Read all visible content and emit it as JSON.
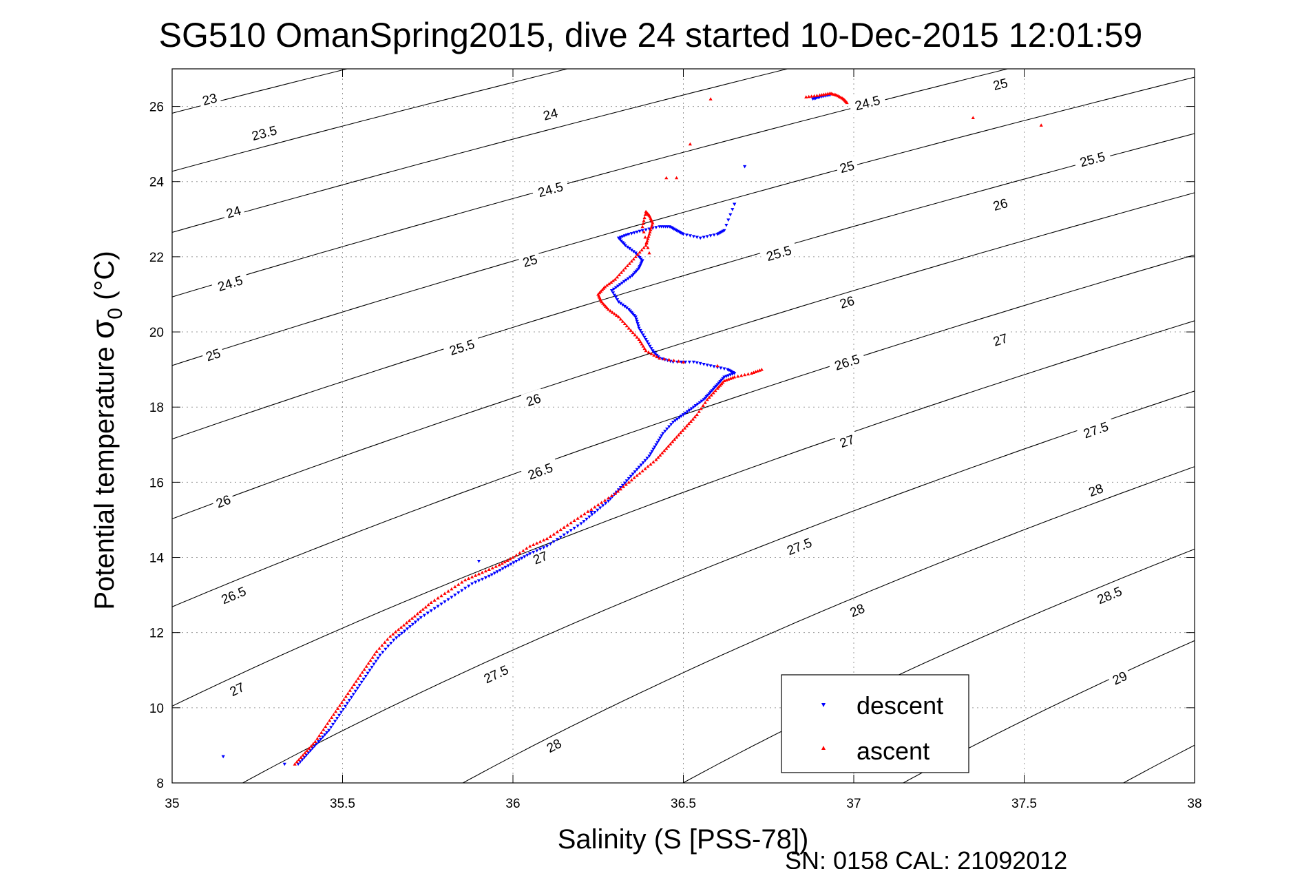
{
  "chart_data": {
    "type": "scatter",
    "title": "SG510 OmanSpring2015, dive 24 started 10-Dec-2015 12:01:59",
    "xlabel": "Salinity (S [PSS-78])",
    "ylabel_main": "Potential temperature ",
    "ylabel_sigma": "σ",
    "ylabel_sub": "0",
    "ylabel_unit": " (°C)",
    "xlim": [
      35,
      38
    ],
    "ylim": [
      8,
      27
    ],
    "x_ticks": [
      "35",
      "35.5",
      "36",
      "36.5",
      "37",
      "37.5",
      "38"
    ],
    "y_ticks": [
      "8",
      "10",
      "12",
      "14",
      "16",
      "18",
      "20",
      "22",
      "24",
      "26"
    ],
    "grid": true,
    "legend_position": "bottom-right",
    "footer": "SN: 0158  CAL: 21092012",
    "contour_labels": [
      {
        "text": "23",
        "s": 35.11,
        "t": 26.2
      },
      {
        "text": "23.5",
        "s": 35.27,
        "t": 25.3
      },
      {
        "text": "24",
        "s": 36.11,
        "t": 25.8
      },
      {
        "text": "24",
        "s": 35.18,
        "t": 23.2
      },
      {
        "text": "24.5",
        "s": 37.04,
        "t": 26.1
      },
      {
        "text": "24.5",
        "s": 36.11,
        "t": 23.8
      },
      {
        "text": "24.5",
        "s": 35.17,
        "t": 21.3
      },
      {
        "text": "25",
        "s": 37.43,
        "t": 26.6
      },
      {
        "text": "25",
        "s": 36.98,
        "t": 24.4
      },
      {
        "text": "25",
        "s": 36.05,
        "t": 21.9
      },
      {
        "text": "25",
        "s": 35.12,
        "t": 19.4
      },
      {
        "text": "25.5",
        "s": 37.7,
        "t": 24.6
      },
      {
        "text": "25.5",
        "s": 36.78,
        "t": 22.1
      },
      {
        "text": "25.5",
        "s": 35.85,
        "t": 19.6
      },
      {
        "text": "26",
        "s": 37.43,
        "t": 23.4
      },
      {
        "text": "26",
        "s": 36.98,
        "t": 20.8
      },
      {
        "text": "26",
        "s": 36.06,
        "t": 18.2
      },
      {
        "text": "26",
        "s": 35.15,
        "t": 15.5
      },
      {
        "text": "26.5",
        "s": 36.98,
        "t": 19.2
      },
      {
        "text": "26.5",
        "s": 36.08,
        "t": 16.3
      },
      {
        "text": "26.5",
        "s": 35.18,
        "t": 13.0
      },
      {
        "text": "27",
        "s": 37.43,
        "t": 19.8
      },
      {
        "text": "27",
        "s": 36.98,
        "t": 17.1
      },
      {
        "text": "27",
        "s": 36.08,
        "t": 14.0
      },
      {
        "text": "27",
        "s": 35.19,
        "t": 10.5
      },
      {
        "text": "27.5",
        "s": 37.71,
        "t": 17.4
      },
      {
        "text": "27.5",
        "s": 36.84,
        "t": 14.3
      },
      {
        "text": "27.5",
        "s": 35.95,
        "t": 10.9
      },
      {
        "text": "28",
        "s": 37.71,
        "t": 15.8
      },
      {
        "text": "28",
        "s": 37.01,
        "t": 12.6
      },
      {
        "text": "28",
        "s": 36.12,
        "t": 9.0
      },
      {
        "text": "28.5",
        "s": 37.75,
        "t": 13.0
      },
      {
        "text": "29",
        "s": 37.78,
        "t": 10.8
      }
    ],
    "series": [
      {
        "name": "descent",
        "color": "#0000ff",
        "marker": "triangle-down",
        "x": [
          35.37,
          35.4,
          35.43,
          35.46,
          35.49,
          35.52,
          35.55,
          35.58,
          35.61,
          35.65,
          35.69,
          35.73,
          35.78,
          35.83,
          35.88,
          35.93,
          35.97,
          36.01,
          36.05,
          36.1,
          36.15,
          36.2,
          36.24,
          36.28,
          36.31,
          36.34,
          36.37,
          36.4,
          36.42,
          36.44,
          36.47,
          36.5,
          36.53,
          36.56,
          36.58,
          36.6,
          36.62,
          36.65,
          36.63,
          36.58,
          36.53,
          36.47,
          36.43,
          36.41,
          36.39,
          36.37,
          36.36,
          36.34,
          36.31,
          36.29,
          36.32,
          36.35,
          36.37,
          36.38,
          36.36,
          36.33,
          36.31,
          36.34,
          36.38,
          36.43,
          36.46,
          36.48,
          36.5,
          36.55,
          36.6,
          36.62,
          36.65,
          36.68,
          36.88,
          36.9,
          36.93,
          35.15,
          35.33,
          35.9,
          36.23,
          36.65
        ],
        "y": [
          8.5,
          8.8,
          9.1,
          9.4,
          9.8,
          10.2,
          10.6,
          11.0,
          11.4,
          11.8,
          12.1,
          12.4,
          12.7,
          13.0,
          13.3,
          13.5,
          13.7,
          13.9,
          14.1,
          14.3,
          14.6,
          14.9,
          15.2,
          15.5,
          15.8,
          16.1,
          16.4,
          16.7,
          17.0,
          17.3,
          17.6,
          17.8,
          18.0,
          18.2,
          18.4,
          18.6,
          18.8,
          18.9,
          19.0,
          19.1,
          19.2,
          19.2,
          19.3,
          19.5,
          19.8,
          20.1,
          20.4,
          20.6,
          20.8,
          21.1,
          21.3,
          21.5,
          21.7,
          21.9,
          22.1,
          22.3,
          22.5,
          22.6,
          22.7,
          22.8,
          22.8,
          22.7,
          22.6,
          22.5,
          22.6,
          22.7,
          23.4,
          24.4,
          26.2,
          26.25,
          26.3,
          8.7,
          8.5,
          13.9,
          15.2,
          23.4
        ]
      },
      {
        "name": "ascent",
        "color": "#ff0000",
        "marker": "triangle-up",
        "x": [
          35.36,
          35.39,
          35.42,
          35.45,
          35.48,
          35.51,
          35.54,
          35.57,
          35.6,
          35.64,
          35.68,
          35.72,
          35.76,
          35.81,
          35.86,
          35.91,
          35.96,
          36.0,
          36.05,
          36.1,
          36.15,
          36.2,
          36.25,
          36.3,
          36.34,
          36.38,
          36.42,
          36.45,
          36.48,
          36.51,
          36.54,
          36.57,
          36.6,
          36.62,
          36.65,
          36.7,
          36.73,
          36.6,
          36.5,
          36.43,
          36.39,
          36.37,
          36.34,
          36.31,
          36.28,
          36.26,
          36.25,
          36.27,
          36.3,
          36.33,
          36.36,
          36.39,
          36.4,
          36.41,
          36.4,
          36.39,
          36.38,
          36.4,
          36.45,
          36.52,
          36.58,
          36.86,
          36.9,
          36.93,
          36.95,
          36.97,
          36.98,
          37.35,
          37.55,
          36.48
        ],
        "y": [
          8.5,
          8.8,
          9.1,
          9.5,
          9.9,
          10.3,
          10.7,
          11.1,
          11.5,
          11.9,
          12.2,
          12.5,
          12.8,
          13.1,
          13.4,
          13.6,
          13.8,
          14.0,
          14.3,
          14.5,
          14.8,
          15.1,
          15.4,
          15.7,
          16.0,
          16.3,
          16.6,
          16.9,
          17.2,
          17.5,
          17.8,
          18.2,
          18.5,
          18.7,
          18.8,
          18.9,
          19.0,
          19.1,
          19.2,
          19.3,
          19.5,
          19.8,
          20.1,
          20.4,
          20.6,
          20.8,
          21.0,
          21.2,
          21.4,
          21.7,
          22.0,
          22.3,
          22.6,
          22.9,
          23.1,
          23.2,
          22.8,
          22.1,
          24.1,
          25.0,
          26.2,
          26.25,
          26.3,
          26.35,
          26.3,
          26.2,
          26.1,
          25.7,
          25.5,
          24.1
        ]
      }
    ]
  }
}
